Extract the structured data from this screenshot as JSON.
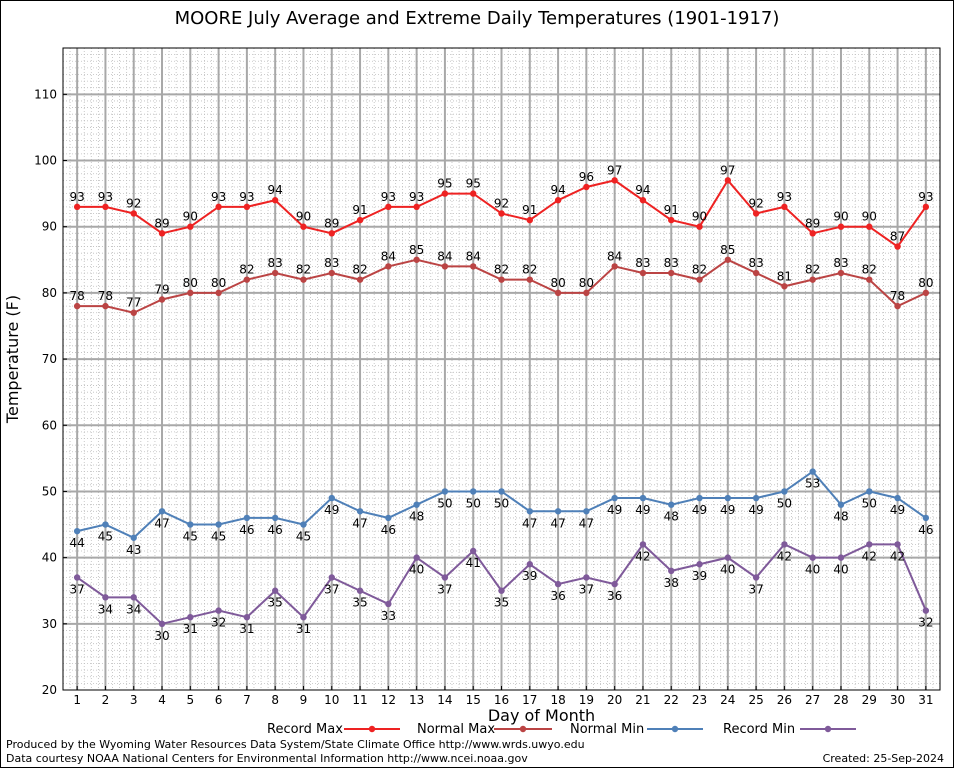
{
  "header": {
    "title": "MOORE July Average and Extreme Daily Temperatures (1901-1917)"
  },
  "footer": {
    "credit1": "Produced by the Wyoming Water Resources Data System/State Climate Office http://www.wrds.uwyo.edu",
    "credit2": "Data courtesy NOAA National Centers for Environmental Information http://www.ncei.noaa.gov",
    "created": "Created:  25-Sep-2024"
  },
  "chart_data": {
    "type": "line",
    "title": "MOORE July Average and Extreme Daily Temperatures (1901-1917)",
    "xlabel": "Day of Month",
    "ylabel": "Temperature (F)",
    "xlim": [
      0.5,
      31.5
    ],
    "ylim": [
      20,
      117
    ],
    "yticks": [
      20,
      30,
      40,
      50,
      60,
      70,
      80,
      90,
      100,
      110
    ],
    "x": [
      1,
      2,
      3,
      4,
      5,
      6,
      7,
      8,
      9,
      10,
      11,
      12,
      13,
      14,
      15,
      16,
      17,
      18,
      19,
      20,
      21,
      22,
      23,
      24,
      25,
      26,
      27,
      28,
      29,
      30,
      31
    ],
    "grid": true,
    "legend_position": "bottom",
    "series": [
      {
        "name": "Record Max",
        "color": "#ee2222",
        "label_side": "above",
        "values": [
          93,
          93,
          92,
          89,
          90,
          93,
          93,
          94,
          90,
          89,
          91,
          93,
          93,
          95,
          95,
          92,
          91,
          94,
          96,
          97,
          94,
          91,
          90,
          97,
          92,
          93,
          89,
          90,
          90,
          87,
          93
        ]
      },
      {
        "name": "Normal Max",
        "color": "#bb4444",
        "label_side": "above",
        "values": [
          78,
          78,
          77,
          79,
          80,
          80,
          82,
          83,
          82,
          83,
          82,
          84,
          85,
          84,
          84,
          82,
          82,
          80,
          80,
          84,
          83,
          83,
          82,
          85,
          83,
          81,
          82,
          83,
          82,
          78,
          80
        ]
      },
      {
        "name": "Normal Min",
        "color": "#4f80b8",
        "label_side": "below",
        "values": [
          44,
          45,
          43,
          47,
          45,
          45,
          46,
          46,
          45,
          49,
          47,
          46,
          48,
          50,
          50,
          50,
          47,
          47,
          47,
          49,
          49,
          48,
          49,
          49,
          49,
          50,
          53,
          48,
          50,
          49,
          46
        ]
      },
      {
        "name": "Record Min",
        "color": "#7f5a9a",
        "label_side": "below",
        "values": [
          37,
          34,
          34,
          30,
          31,
          32,
          31,
          35,
          31,
          37,
          35,
          33,
          40,
          37,
          41,
          35,
          39,
          36,
          37,
          36,
          42,
          38,
          39,
          40,
          37,
          42,
          40,
          40,
          42,
          42,
          32
        ]
      }
    ]
  }
}
